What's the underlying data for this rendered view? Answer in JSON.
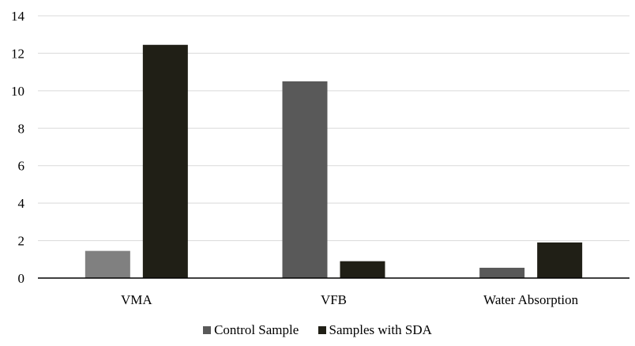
{
  "chart_data": {
    "type": "bar",
    "categories": [
      "VMA",
      "VFB",
      "Water Absorption"
    ],
    "series": [
      {
        "name": "Control Sample",
        "values": [
          1.45,
          10.5,
          0.55
        ],
        "color": "#595959",
        "color_first": "#808080"
      },
      {
        "name": "Samples with SDA",
        "values": [
          12.45,
          0.9,
          1.9
        ],
        "color": "#201f16"
      }
    ],
    "y_ticks": [
      0,
      2,
      4,
      6,
      8,
      10,
      12,
      14
    ],
    "ylim": [
      0,
      14
    ],
    "grid": true,
    "legend_position": "bottom"
  }
}
